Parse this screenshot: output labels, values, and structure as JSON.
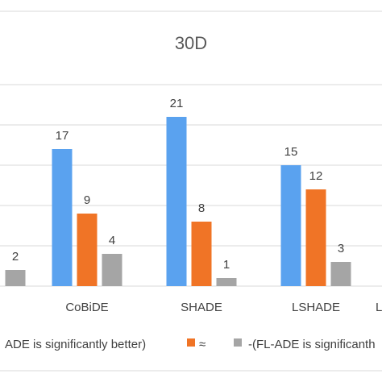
{
  "chart_data": {
    "type": "bar",
    "title": "30D",
    "categories": [
      "",
      "CoBiDE",
      "SHADE",
      "LSHADE",
      "L"
    ],
    "series": [
      {
        "name": "+(FL-ADE is significantly better)",
        "color": "#5aa2ef",
        "values": [
          null,
          17,
          21,
          15,
          null
        ]
      },
      {
        "name": "≈",
        "color": "#f07426",
        "values": [
          null,
          9,
          8,
          12,
          null
        ]
      },
      {
        "name": "-(FL-ADE is significantly worse)",
        "color": "#a5a5a5",
        "values": [
          2,
          4,
          1,
          3,
          null
        ]
      }
    ],
    "data_labels": [
      [
        "",
        "17",
        "21",
        "15",
        ""
      ],
      [
        "",
        "9",
        "8",
        "12",
        ""
      ],
      [
        "2",
        "4",
        "1",
        "3",
        ""
      ]
    ],
    "legend_text": [
      "ADE is significantly better)",
      "≈",
      "-(FL-ADE is significanth"
    ],
    "ylim": [
      0,
      25
    ],
    "grid": true,
    "legend_position": "bottom",
    "xlabel": "",
    "ylabel": ""
  }
}
